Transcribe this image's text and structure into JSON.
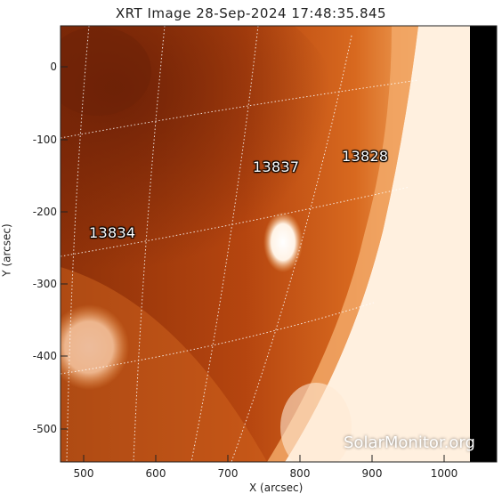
{
  "title": "XRT Image 28-Sep-2024 17:48:35.845",
  "axes": {
    "x_label": "X (arcsec)",
    "y_label": "Y (arcsec)",
    "x_ticks": [
      "500",
      "600",
      "700",
      "800",
      "900",
      "1000"
    ],
    "y_ticks": [
      "0",
      "-100",
      "-200",
      "-300",
      "-400",
      "-500"
    ]
  },
  "regions": [
    {
      "id": "13837"
    },
    {
      "id": "13828"
    },
    {
      "id": "13834"
    }
  ],
  "watermark": "SolarMonitor.org",
  "colors": {
    "disk_dark": "#8a2e0a",
    "disk_mid": "#c45414",
    "disk_light": "#e07a2a",
    "limb_bright": "#fff5ea",
    "frame": "#222222"
  }
}
